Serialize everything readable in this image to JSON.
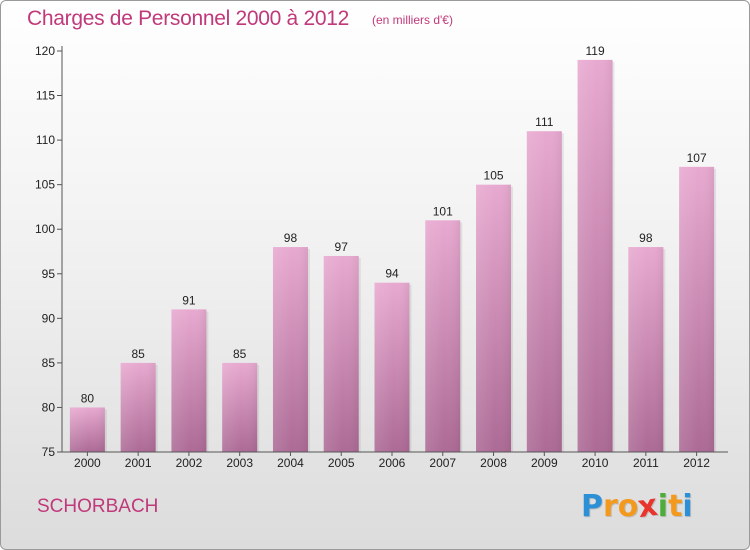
{
  "title": "Charges de Personnel 2000 à 2012",
  "subtitle": "(en milliers d'€)",
  "commune": "SCHORBACH",
  "logo": {
    "letters": [
      "P",
      "r",
      "o",
      "x",
      "i",
      "t",
      "i"
    ],
    "colors": [
      "#2d8fd5",
      "#f39a1e",
      "#f39a1e",
      "#e8342b",
      "#4cad3a",
      "#f39a1e",
      "#2d8fd5"
    ]
  },
  "colors": {
    "accent": "#c0397a",
    "bar_top": "#e8a9d0",
    "bar_bottom": "#ac6a95",
    "axis": "#555555"
  },
  "chart_data": {
    "type": "bar",
    "categories": [
      "2000",
      "2001",
      "2002",
      "2003",
      "2004",
      "2005",
      "2006",
      "2007",
      "2008",
      "2009",
      "2010",
      "2011",
      "2012"
    ],
    "values": [
      80,
      85,
      91,
      85,
      98,
      97,
      94,
      101,
      105,
      111,
      119,
      98,
      107
    ],
    "title": "Charges de Personnel 2000 à 2012",
    "ylabel": "",
    "xlabel": "",
    "ylim": [
      75,
      120
    ],
    "yticks": [
      75,
      80,
      85,
      90,
      95,
      100,
      105,
      110,
      115,
      120
    ],
    "grid": false,
    "data_labels": true
  }
}
